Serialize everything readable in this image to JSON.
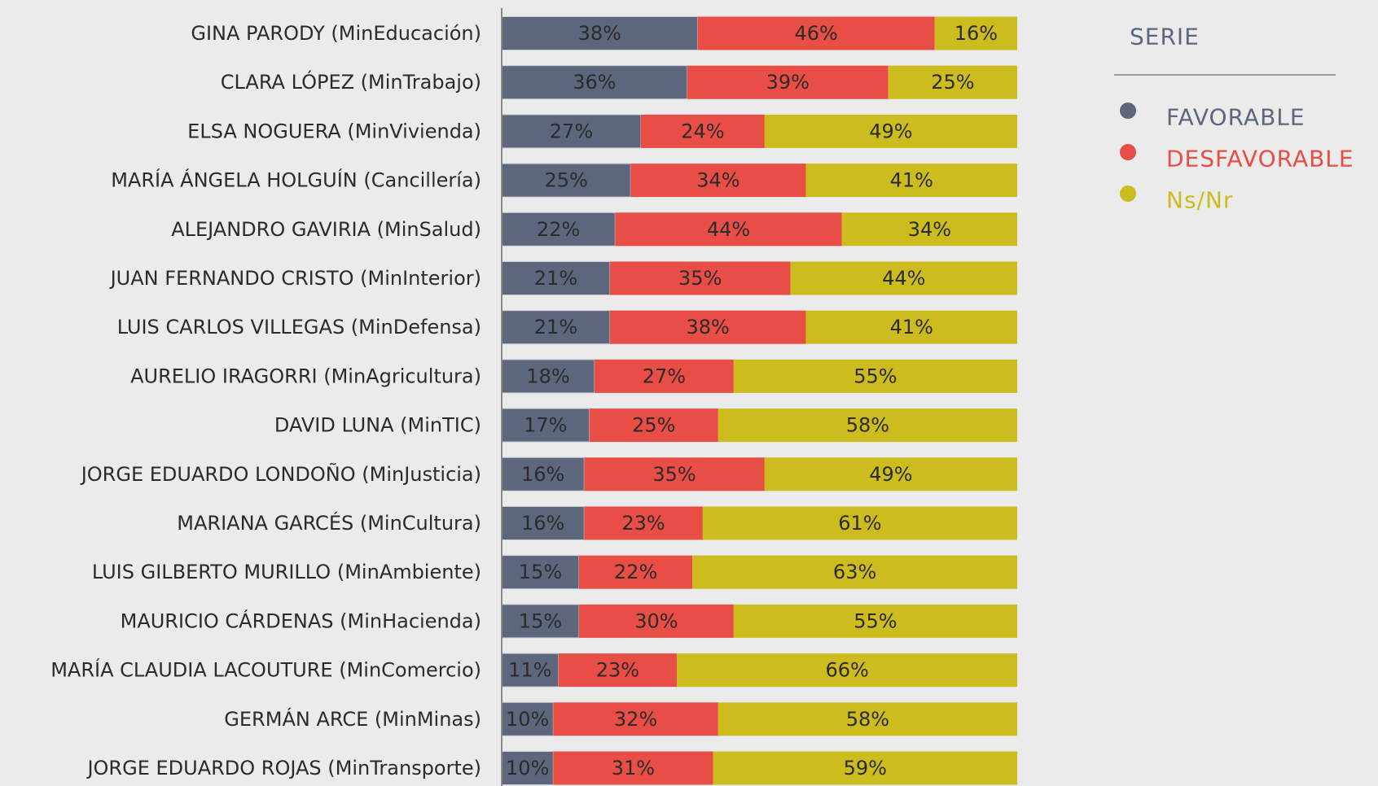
{
  "chart_data": {
    "type": "stacked-bar-horizontal",
    "legend_title": "SERIE",
    "legend_position": "right",
    "categories": [
      "GINA PARODY (MinEducación)",
      "CLARA LÓPEZ (MinTrabajo)",
      "ELSA NOGUERA (MinVivienda)",
      "MARÍA ÁNGELA HOLGUÍN (Cancillería)",
      "ALEJANDRO GAVIRIA (MinSalud)",
      "JUAN FERNANDO CRISTO (MinInterior)",
      "LUIS CARLOS VILLEGAS (MinDefensa)",
      "AURELIO IRAGORRI (MinAgricultura)",
      "DAVID LUNA (MinTIC)",
      "JORGE EDUARDO LONDOÑO (MinJusticia)",
      "MARIANA GARCÉS (MinCultura)",
      "LUIS GILBERTO MURILLO (MinAmbiente)",
      "MAURICIO CÁRDENAS (MinHacienda)",
      "MARÍA CLAUDIA LACOUTURE (MinComercio)",
      "GERMÁN ARCE (MinMinas)",
      "JORGE EDUARDO ROJAS (MinTransporte)"
    ],
    "series": [
      {
        "name": "FAVORABLE",
        "color": "#5c677d",
        "values": [
          38,
          36,
          27,
          25,
          22,
          21,
          21,
          18,
          17,
          16,
          16,
          15,
          15,
          11,
          10,
          10
        ],
        "value_labels": [
          "38%",
          "36%",
          "27%",
          "25%",
          "22%",
          "21%",
          "21%",
          "18%",
          "17%",
          "16%",
          "16%",
          "15%",
          "15%",
          "11%",
          "10%",
          "10%"
        ]
      },
      {
        "name": "DESFAVORABLE",
        "color": "#e84e45",
        "values": [
          46,
          39,
          24,
          34,
          44,
          35,
          38,
          27,
          25,
          35,
          23,
          22,
          30,
          23,
          32,
          31
        ],
        "value_labels": [
          "46%",
          "39%",
          "24%",
          "34%",
          "44%",
          "35%",
          "38%",
          "27%",
          "25%",
          "35%",
          "23%",
          "22%",
          "30%",
          "23%",
          "32%",
          "31%"
        ]
      },
      {
        "name": "Ns/Nr",
        "color": "#cdbc1e",
        "values": [
          16,
          25,
          49,
          41,
          34,
          44,
          41,
          55,
          58,
          49,
          61,
          63,
          55,
          66,
          58,
          59
        ],
        "value_labels": [
          "16%",
          "25%",
          "49%",
          "41%",
          "34%",
          "44%",
          "41%",
          "55%",
          "58%",
          "49%",
          "61%",
          "63%",
          "55%",
          "66%",
          "58%",
          "59%"
        ]
      }
    ]
  }
}
